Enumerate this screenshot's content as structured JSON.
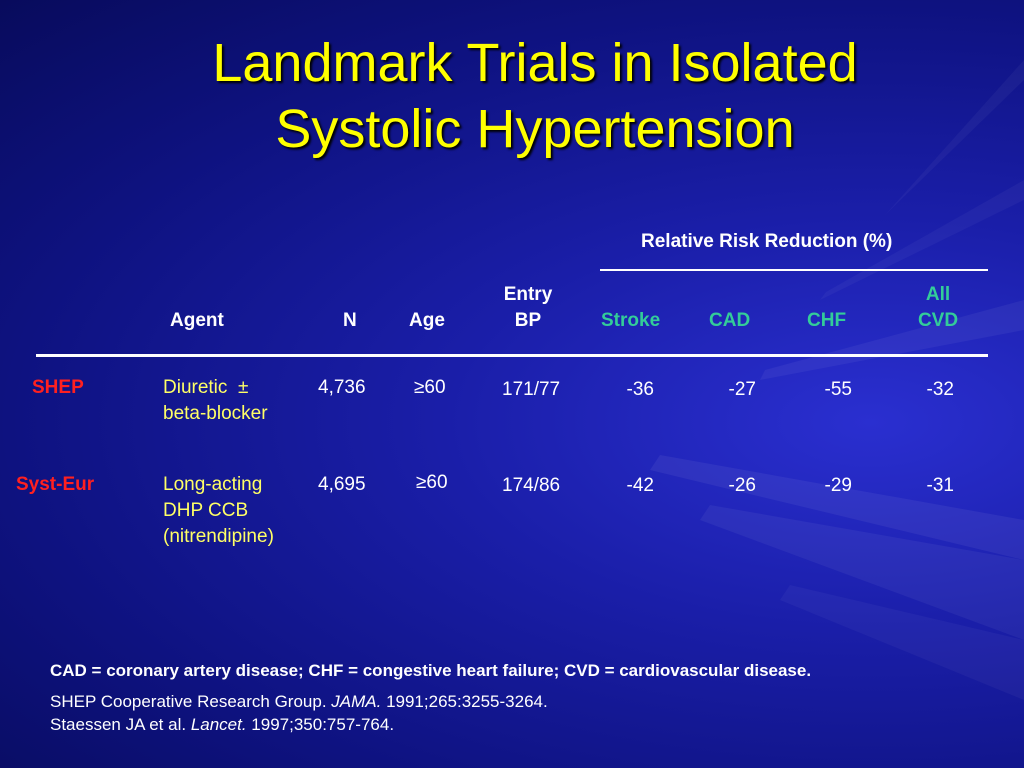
{
  "title": {
    "line1": "Landmark Trials in Isolated",
    "line2": "Systolic Hypertension"
  },
  "table": {
    "group_header": "Relative Risk Reduction (%)",
    "headers": {
      "agent": "Agent",
      "n": "N",
      "age": "Age",
      "entry_bp_1": "Entry",
      "entry_bp_2": "BP",
      "stroke": "Stroke",
      "cad": "CAD",
      "chf": "CHF",
      "all_cvd_1": "All",
      "all_cvd_2": "CVD"
    },
    "rows": [
      {
        "trial": "SHEP",
        "agent_lines": [
          "Diuretic  ±",
          "beta-blocker"
        ],
        "n": "4,736",
        "age": "≥60",
        "entry_bp": "171/77",
        "stroke": "-36",
        "cad": "-27",
        "chf": "-55",
        "all_cvd": "-32"
      },
      {
        "trial": "Syst-Eur",
        "agent_lines": [
          "Long-acting",
          "DHP CCB",
          "(nitrendipine)"
        ],
        "n": "4,695",
        "age": "≥60",
        "entry_bp": "174/86",
        "stroke": "-42",
        "cad": "-26",
        "chf": "-29",
        "all_cvd": "-31"
      }
    ]
  },
  "footnotes": {
    "abbreviations": "CAD = coronary artery disease; CHF = congestive heart failure; CVD = cardiovascular disease.",
    "ref1_pre": "SHEP Cooperative Research Group. ",
    "ref1_journal": "JAMA.",
    "ref1_post": " 1991;265:3255-3264.",
    "ref2_pre": "Staessen JA et al. ",
    "ref2_journal": "Lancet.",
    "ref2_post": " 1997;350:757-764."
  },
  "colors": {
    "background": "#1a1ea8",
    "title": "#ffff00",
    "agent_text": "#ffff66",
    "rrr_subheaders": "#33cc99",
    "trial_names": "#ff2020",
    "text": "#ffffff"
  }
}
